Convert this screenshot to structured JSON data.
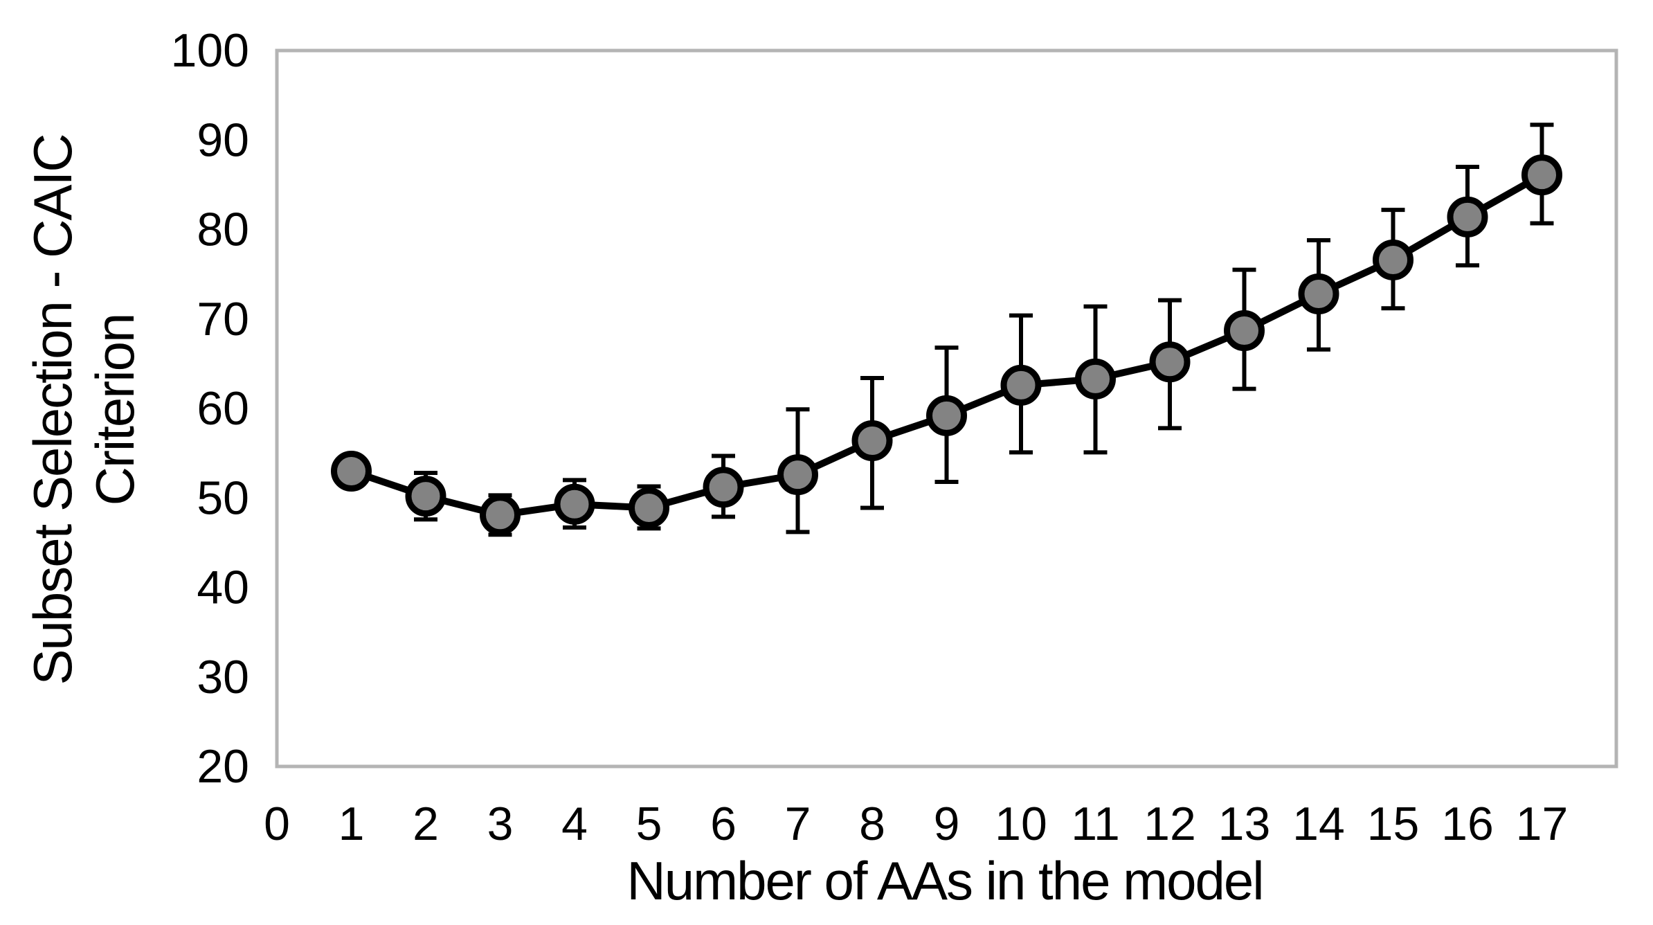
{
  "figure": {
    "background": "#FFFFFF"
  },
  "chart_data": {
    "type": "line",
    "title": "",
    "xlabel": "Number of AAs in the model",
    "ylabel": "Subset Selection - CAIC Criterion",
    "ylabel_lines": [
      "Subset Selection - CAIC",
      "Criterion"
    ],
    "x": [
      1,
      2,
      3,
      4,
      5,
      6,
      7,
      8,
      9,
      10,
      11,
      12,
      13,
      14,
      15,
      16,
      17
    ],
    "y": [
      53.0,
      50.2,
      48.1,
      49.3,
      48.9,
      51.2,
      52.6,
      56.4,
      59.2,
      62.6,
      63.3,
      65.2,
      68.7,
      72.8,
      76.6,
      81.4,
      86.1
    ],
    "error_bar_low": [
      null,
      47.6,
      45.9,
      46.7,
      46.6,
      47.9,
      46.2,
      48.9,
      51.8,
      55.1,
      55.1,
      57.8,
      62.2,
      66.6,
      71.2,
      76.0,
      80.7
    ],
    "error_bar_high": [
      null,
      52.8,
      50.3,
      52.0,
      51.3,
      54.7,
      59.9,
      63.4,
      66.8,
      70.4,
      71.4,
      72.1,
      75.5,
      78.8,
      82.2,
      87.0,
      91.7
    ],
    "xticks": [
      0,
      1,
      2,
      3,
      4,
      5,
      6,
      7,
      8,
      9,
      10,
      11,
      12,
      13,
      14,
      15,
      16,
      17
    ],
    "yticks": [
      20,
      30,
      40,
      50,
      60,
      70,
      80,
      90,
      100
    ],
    "xlim": [
      0,
      18
    ],
    "ylim": [
      20,
      100
    ],
    "grid": false,
    "legend": false,
    "colors": {
      "marker_fill": "#838383",
      "marker_stroke": "#000000",
      "line": "#000000",
      "error_bar": "#000000",
      "frame": "#B4B4B4",
      "text": "#000000"
    }
  }
}
